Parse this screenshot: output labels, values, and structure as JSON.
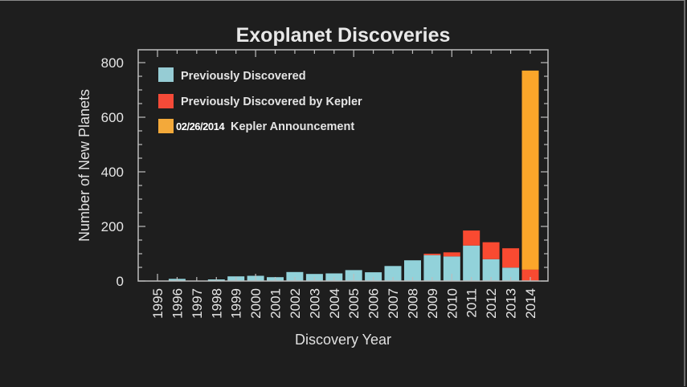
{
  "chart_data": {
    "type": "bar",
    "stacked": true,
    "title": "Exoplanet Discoveries",
    "xlabel": "Discovery Year",
    "ylabel": "Number of New Planets",
    "ylim": [
      0,
      800
    ],
    "yticks": [
      0,
      200,
      400,
      600,
      800
    ],
    "grid": false,
    "legend_position": "upper left (inside)",
    "categories": [
      "1995",
      "1996",
      "1997",
      "1998",
      "1999",
      "2000",
      "2001",
      "2002",
      "2003",
      "2004",
      "2005",
      "2006",
      "2007",
      "2008",
      "2009",
      "2010",
      "2011",
      "2012",
      "2013",
      "2014"
    ],
    "series": [
      {
        "name": "Previously Discovered",
        "color": "#92d2da",
        "values": [
          1,
          8,
          1,
          6,
          17,
          19,
          14,
          33,
          26,
          28,
          40,
          32,
          55,
          76,
          95,
          90,
          130,
          80,
          49,
          0
        ]
      },
      {
        "name": "Previously Discovered by Kepler",
        "color": "#f94a31",
        "values": [
          0,
          0,
          0,
          0,
          0,
          0,
          0,
          0,
          0,
          0,
          0,
          0,
          0,
          0,
          5,
          15,
          55,
          62,
          71,
          42
        ]
      },
      {
        "name": "02/26/2014 Kepler Announcement",
        "color": "#fba62a",
        "values": [
          0,
          0,
          0,
          0,
          0,
          0,
          0,
          0,
          0,
          0,
          0,
          0,
          0,
          0,
          0,
          0,
          0,
          0,
          0,
          729
        ]
      }
    ]
  },
  "legend": {
    "items": [
      {
        "label": "Previously Discovered",
        "color": "#96ccd4"
      },
      {
        "label": "Previously Discovered by Kepler",
        "color": "#f44a38"
      },
      {
        "label": "Kepler Announcement",
        "date_prefix": "02/26/2014",
        "color": "#f3a93a"
      }
    ]
  },
  "colors": {
    "background": "#1e1e1e",
    "axis": "#bdbdbd",
    "text": "#e6e6e6"
  }
}
